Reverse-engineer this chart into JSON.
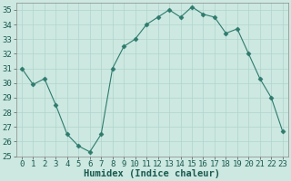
{
  "x": [
    0,
    1,
    2,
    3,
    4,
    5,
    6,
    7,
    8,
    9,
    10,
    11,
    12,
    13,
    14,
    15,
    16,
    17,
    18,
    19,
    20,
    21,
    22,
    23
  ],
  "y": [
    31,
    29.9,
    30.3,
    28.5,
    26.5,
    25.7,
    25.3,
    26.5,
    31,
    32.5,
    33,
    34,
    34.5,
    35.0,
    34.5,
    35.2,
    34.7,
    34.5,
    33.4,
    33.7,
    32.0,
    30.3,
    29.0,
    26.7
  ],
  "line_color": "#2e7b6e",
  "marker": "D",
  "marker_size": 2.5,
  "bg_color": "#cce8e0",
  "grid_color": "#b0d4cc",
  "xlabel": "Humidex (Indice chaleur)",
  "xlabel_fontsize": 7.5,
  "ylim": [
    25,
    35.5
  ],
  "xlim": [
    -0.5,
    23.5
  ],
  "yticks": [
    25,
    26,
    27,
    28,
    29,
    30,
    31,
    32,
    33,
    34,
    35
  ],
  "xticks": [
    0,
    1,
    2,
    3,
    4,
    5,
    6,
    7,
    8,
    9,
    10,
    11,
    12,
    13,
    14,
    15,
    16,
    17,
    18,
    19,
    20,
    21,
    22,
    23
  ],
  "tick_fontsize": 6.5
}
